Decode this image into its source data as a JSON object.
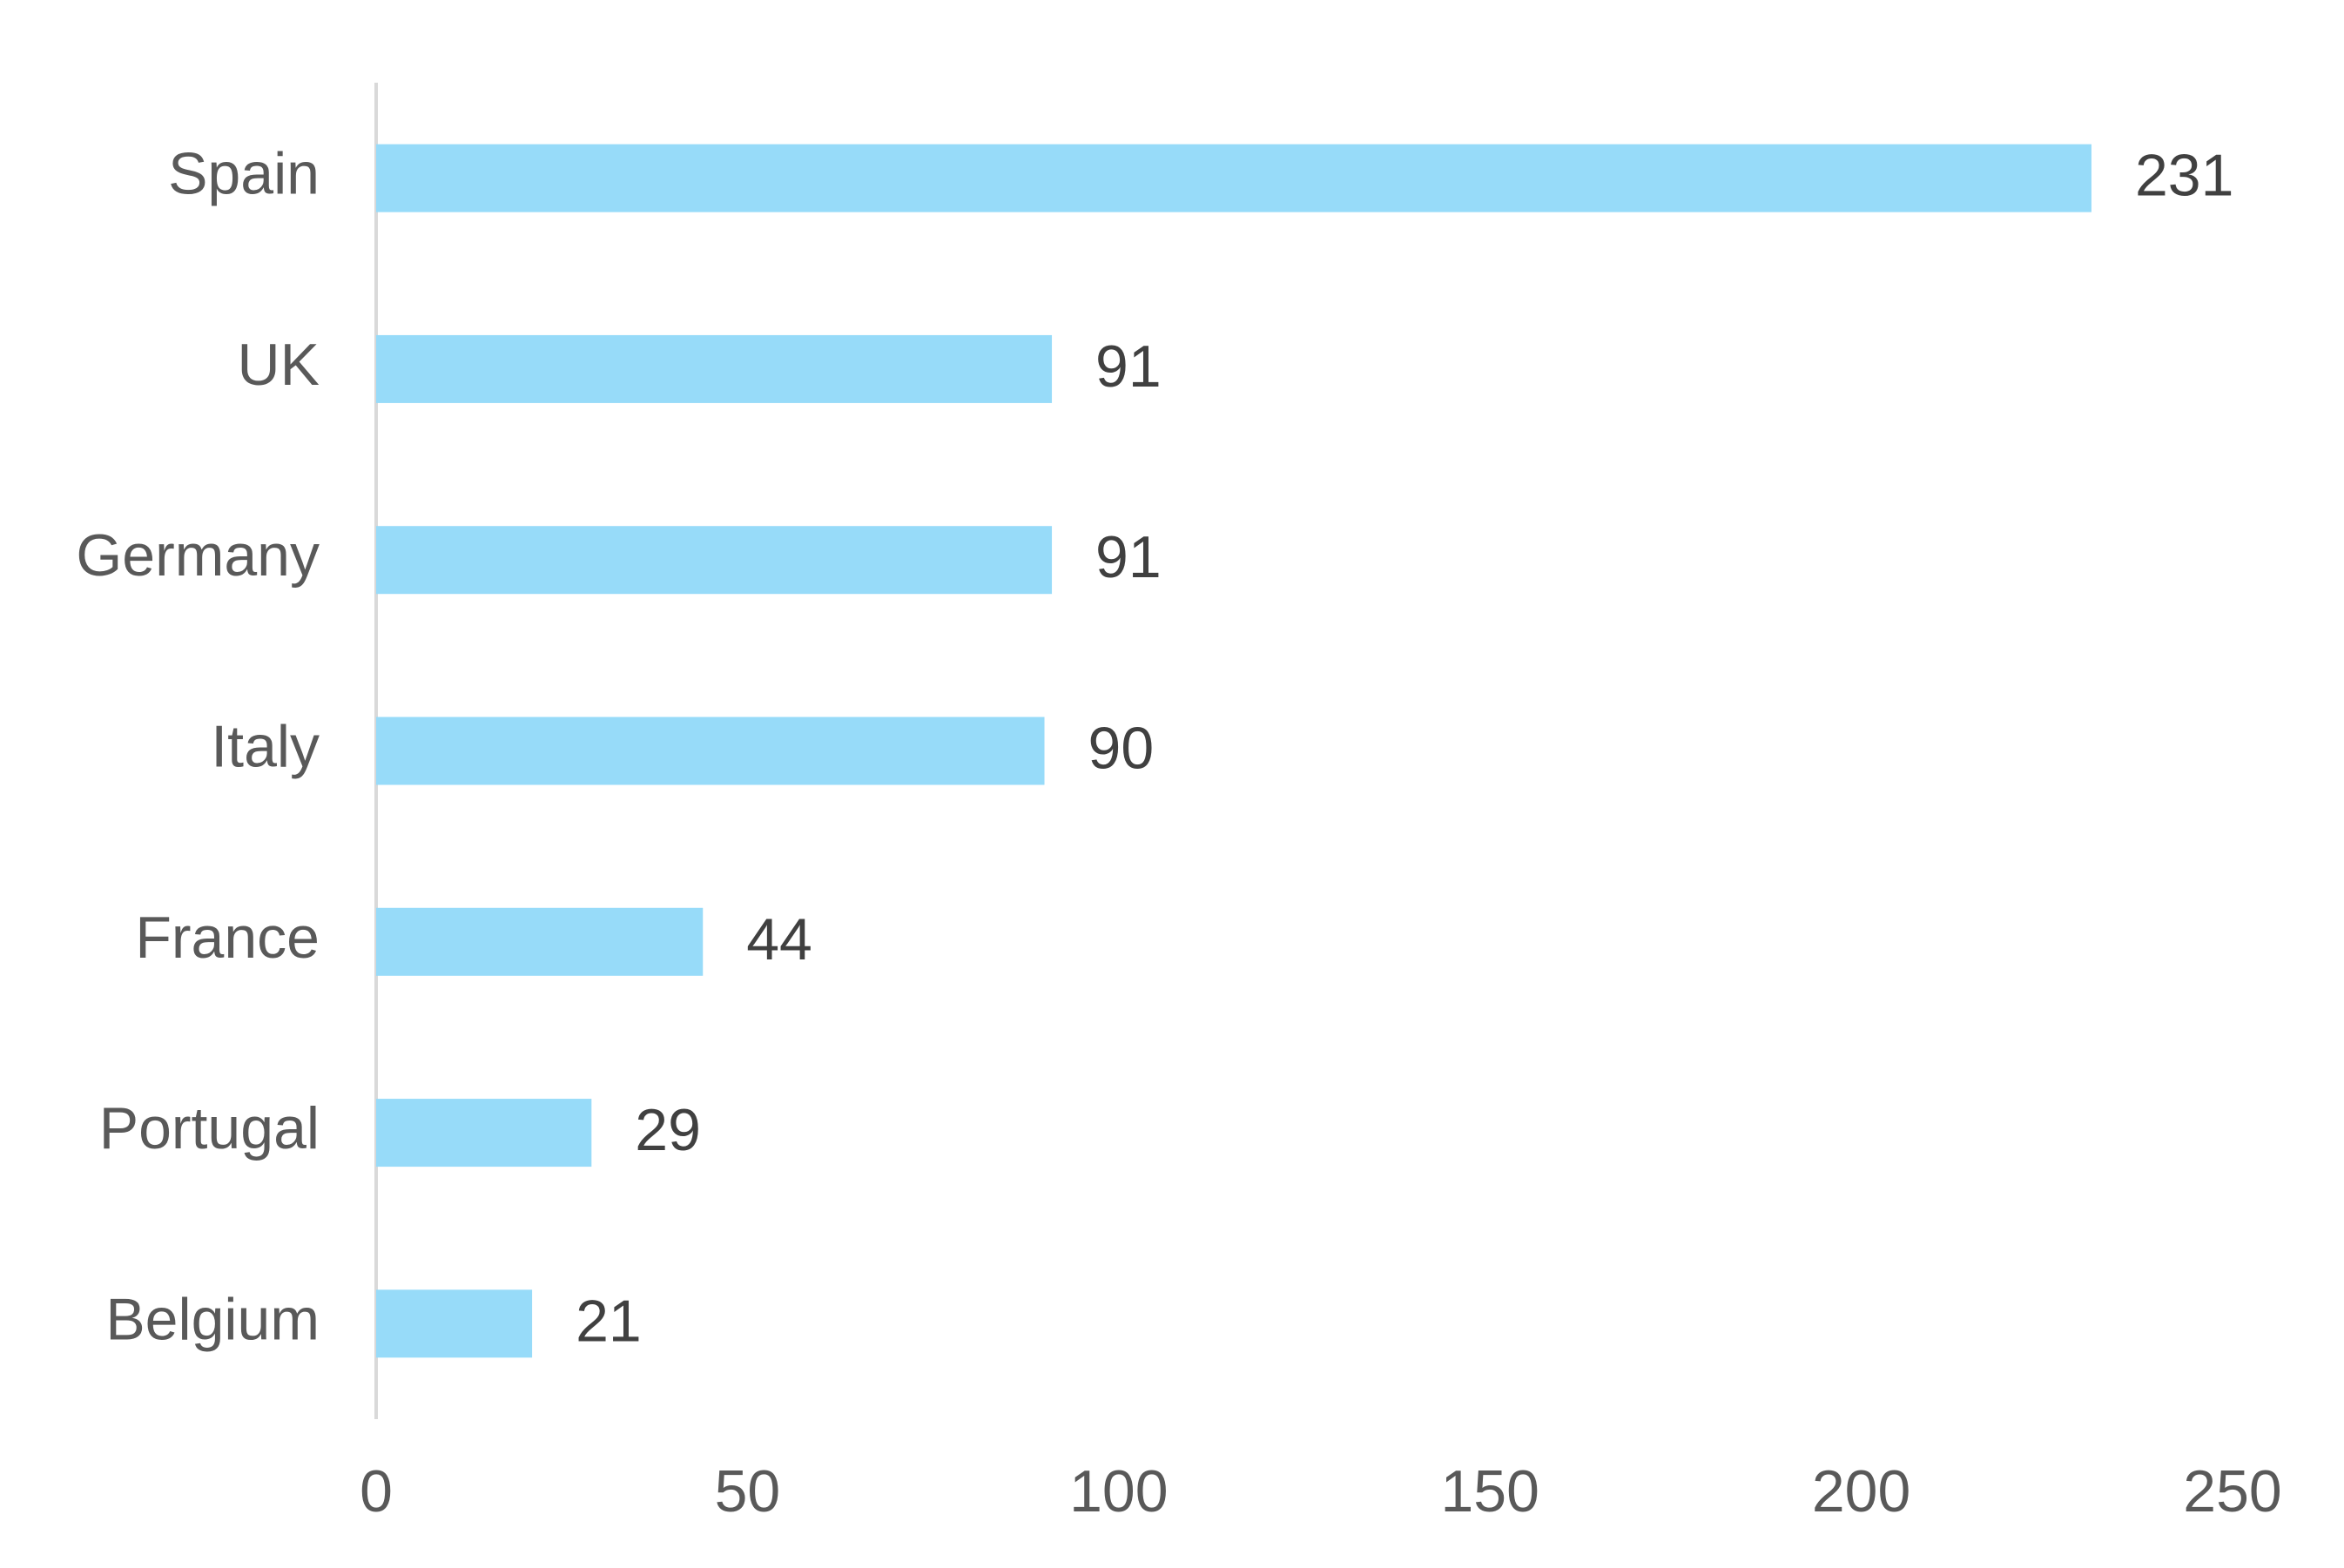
{
  "chart_data": {
    "type": "bar",
    "orientation": "horizontal",
    "categories": [
      "Spain",
      "UK",
      "Germany",
      "Italy",
      "France",
      "Portugal",
      "Belgium"
    ],
    "values": [
      231,
      91,
      91,
      90,
      44,
      29,
      21
    ],
    "color": "#97dbf9",
    "xlim": [
      0,
      250
    ],
    "xticks": [
      0,
      50,
      100,
      150,
      200,
      250
    ],
    "grid": false
  }
}
